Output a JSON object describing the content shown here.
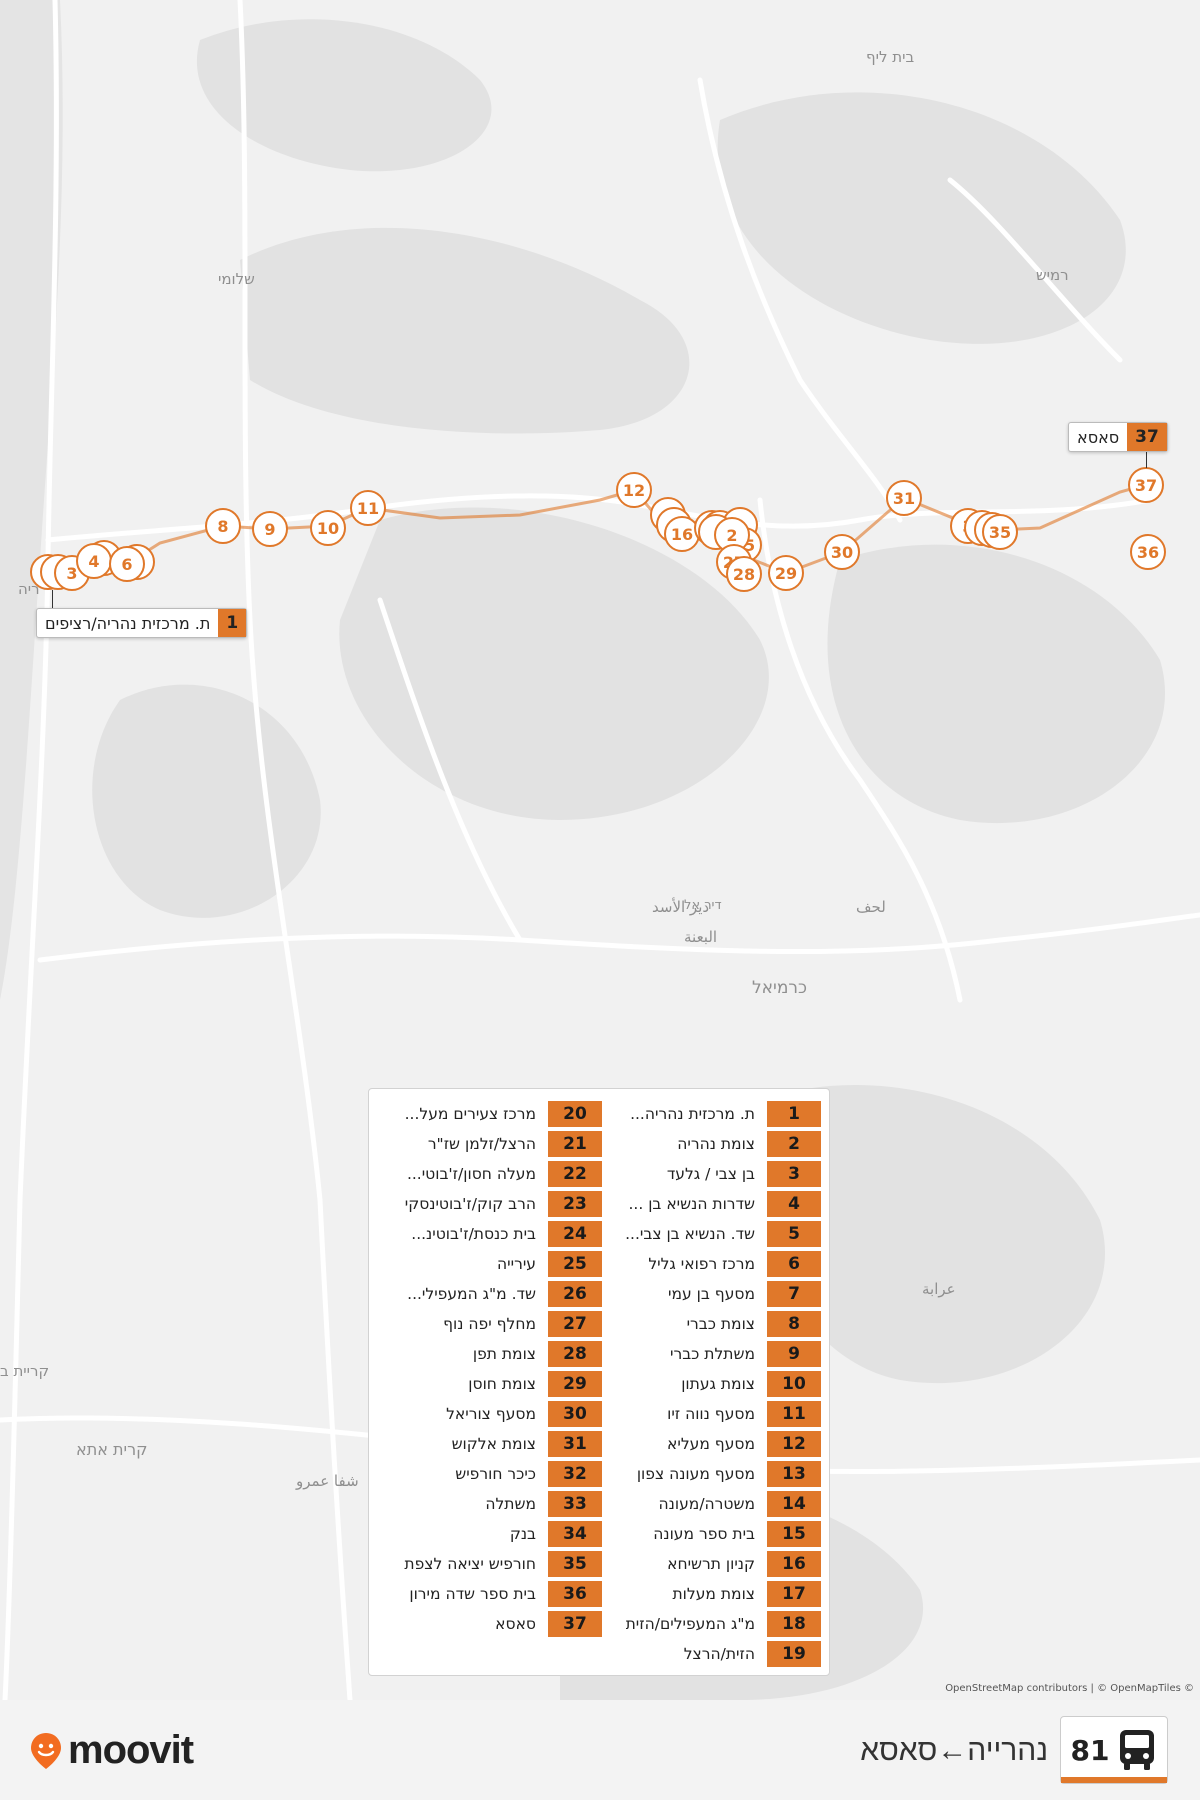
{
  "map": {
    "place_labels": [
      {
        "id": "beit-lif",
        "text": "בית ליף"
      },
      {
        "id": "shlomi",
        "text": "שלומי"
      },
      {
        "id": "ramim",
        "text": "רמיש"
      },
      {
        "id": "karmiel",
        "text": "כרמיאל"
      },
      {
        "id": "deir-al-asad",
        "text": "دير الأسد"
      },
      {
        "id": "al-bana",
        "text": "البعنة"
      },
      {
        "id": "dir-asad",
        "text": "דיר אל"
      },
      {
        "id": "lehaf",
        "text": "لحف"
      },
      {
        "id": "araba",
        "text": "عرابة"
      },
      {
        "id": "kiryat-ata",
        "text": "קרית אתא"
      },
      {
        "id": "shefa-amr",
        "text": "شفا عمرو"
      },
      {
        "id": "kiryat-b",
        "text": "קריית ב"
      },
      {
        "id": "nahariya-edge",
        "text": "ריה"
      }
    ],
    "attribution": "OpenStreetMap contributors | © OpenMapTiles ©",
    "start_callout": {
      "num": "1",
      "name": "ת. מרכזית נהריה/רציפים"
    },
    "end_callout": {
      "num": "37",
      "name": "סאסא"
    }
  },
  "stops": [
    {
      "num": "1",
      "name": "ת. מרכזית נהריה..."
    },
    {
      "num": "2",
      "name": "צומת נהריה"
    },
    {
      "num": "3",
      "name": "בן צבי / גלעד"
    },
    {
      "num": "4",
      "name": "שדרות הנשיא בן ..."
    },
    {
      "num": "5",
      "name": "שד. הנשיא בן צבי..."
    },
    {
      "num": "6",
      "name": "מרכז רפואי גליל"
    },
    {
      "num": "7",
      "name": "מסעף בן עמי"
    },
    {
      "num": "8",
      "name": "צומת כברי"
    },
    {
      "num": "9",
      "name": "משתלת כברי"
    },
    {
      "num": "10",
      "name": "צומת געתון"
    },
    {
      "num": "11",
      "name": "מסעף נווה זיו"
    },
    {
      "num": "12",
      "name": "מסעף מעליא"
    },
    {
      "num": "13",
      "name": "מסעף מעונה צפון"
    },
    {
      "num": "14",
      "name": "משטרה/מעונה"
    },
    {
      "num": "15",
      "name": "בית ספר מעונה"
    },
    {
      "num": "16",
      "name": "קניון תרשיחא"
    },
    {
      "num": "17",
      "name": "צומת מעלות"
    },
    {
      "num": "18",
      "name": "מ\"ג המעפילים/הזית"
    },
    {
      "num": "19",
      "name": "הזית/הרצל"
    },
    {
      "num": "20",
      "name": "מרכז צעירים מעל..."
    },
    {
      "num": "21",
      "name": "הרצל/זלמן שז\"ר"
    },
    {
      "num": "22",
      "name": "מעלה חסון/ז'בוטי..."
    },
    {
      "num": "23",
      "name": "הרב קוק/ז'בוטינסקי"
    },
    {
      "num": "24",
      "name": "בית כנסת/ז'בוטינ..."
    },
    {
      "num": "25",
      "name": "עירייה"
    },
    {
      "num": "26",
      "name": "שד. מ\"ג המעפילי..."
    },
    {
      "num": "27",
      "name": "מחלף יפה נוף"
    },
    {
      "num": "28",
      "name": "צומת תפן"
    },
    {
      "num": "29",
      "name": "צומת חוסן"
    },
    {
      "num": "30",
      "name": "מסעף צוריאל"
    },
    {
      "num": "31",
      "name": "צומת אלקוש"
    },
    {
      "num": "32",
      "name": "כיכר חורפיש"
    },
    {
      "num": "33",
      "name": "משתלה"
    },
    {
      "num": "34",
      "name": "בנק"
    },
    {
      "num": "35",
      "name": "חורפיש יציאה לצפת"
    },
    {
      "num": "36",
      "name": "בית ספר שדה מירון"
    },
    {
      "num": "37",
      "name": "סאסא"
    }
  ],
  "map_markers": [
    "3",
    "4",
    "6",
    "8",
    "9",
    "10",
    "11",
    "12",
    "16",
    "2",
    "25",
    "27",
    "28",
    "29",
    "30",
    "31",
    "3",
    "35",
    "36",
    "37"
  ],
  "footer": {
    "brand": "moovit",
    "route_number": "81",
    "route_title": "נהרייה←סאסא",
    "bus_icon": "bus-icon",
    "pin_icon": "moovit-pin-icon"
  },
  "colors": {
    "accent": "#e0782a",
    "map_bg": "#f1f1f1"
  }
}
